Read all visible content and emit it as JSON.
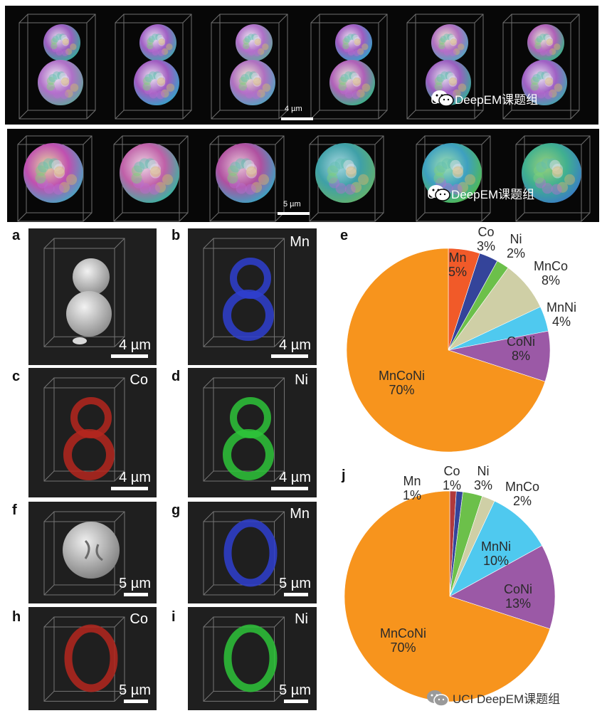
{
  "top_strips": [
    {
      "scale_label": "4 µm",
      "watermark": "UCI DeepEM课题组",
      "frame_count": 6
    },
    {
      "scale_label": "5 µm",
      "watermark": "UCI DeepEM课题组",
      "frame_count": 6
    }
  ],
  "bottom_watermark": "UCI DeepEM课题组",
  "panels": {
    "a": {
      "letter": "a",
      "element": "",
      "scale": "4 µm",
      "tint": "#d9d9d9"
    },
    "b": {
      "letter": "b",
      "element": "Mn",
      "scale": "4 µm",
      "tint": "#2f3fd0"
    },
    "c": {
      "letter": "c",
      "element": "Co",
      "scale": "4 µm",
      "tint": "#b5271f"
    },
    "d": {
      "letter": "d",
      "element": "Ni",
      "scale": "4 µm",
      "tint": "#2ec43a"
    },
    "f": {
      "letter": "f",
      "element": "",
      "scale": "5 µm",
      "tint": "#cfcfcf"
    },
    "g": {
      "letter": "g",
      "element": "Mn",
      "scale": "5 µm",
      "tint": "#2f3fd0"
    },
    "h": {
      "letter": "h",
      "element": "Co",
      "scale": "5 µm",
      "tint": "#b5271f"
    },
    "i": {
      "letter": "i",
      "element": "Ni",
      "scale": "5 µm",
      "tint": "#2ec43a"
    }
  },
  "chart_data": [
    {
      "type": "pie",
      "panel": "e",
      "title": "",
      "slices": [
        {
          "label": "Mn",
          "value": 5,
          "display": "5%",
          "color": "#f15a29"
        },
        {
          "label": "Co",
          "value": 3,
          "display": "3%",
          "color": "#34449a"
        },
        {
          "label": "Ni",
          "value": 2,
          "display": "2%",
          "color": "#6cc04a"
        },
        {
          "label": "MnCo",
          "value": 8,
          "display": "8%",
          "color": "#cfcfa6"
        },
        {
          "label": "MnNi",
          "value": 4,
          "display": "4%",
          "color": "#4fc9ef"
        },
        {
          "label": "CoNi",
          "value": 8,
          "display": "8%",
          "color": "#9b59a6"
        },
        {
          "label": "MnCoNi",
          "value": 70,
          "display": "70%",
          "color": "#f7941d"
        }
      ]
    },
    {
      "type": "pie",
      "panel": "j",
      "title": "",
      "slices": [
        {
          "label": "Mn",
          "value": 1,
          "display": "1%",
          "color": "#b1393b"
        },
        {
          "label": "Co",
          "value": 1,
          "display": "1%",
          "color": "#34449a"
        },
        {
          "label": "Ni",
          "value": 3,
          "display": "3%",
          "color": "#6cc04a"
        },
        {
          "label": "MnCo",
          "value": 2,
          "display": "2%",
          "color": "#cfcfa6"
        },
        {
          "label": "MnNi",
          "value": 10,
          "display": "10%",
          "color": "#4fc9ef"
        },
        {
          "label": "CoNi",
          "value": 13,
          "display": "13%",
          "color": "#9b59a6"
        },
        {
          "label": "MnCoNi",
          "value": 70,
          "display": "70%",
          "color": "#f7941d"
        }
      ]
    }
  ]
}
